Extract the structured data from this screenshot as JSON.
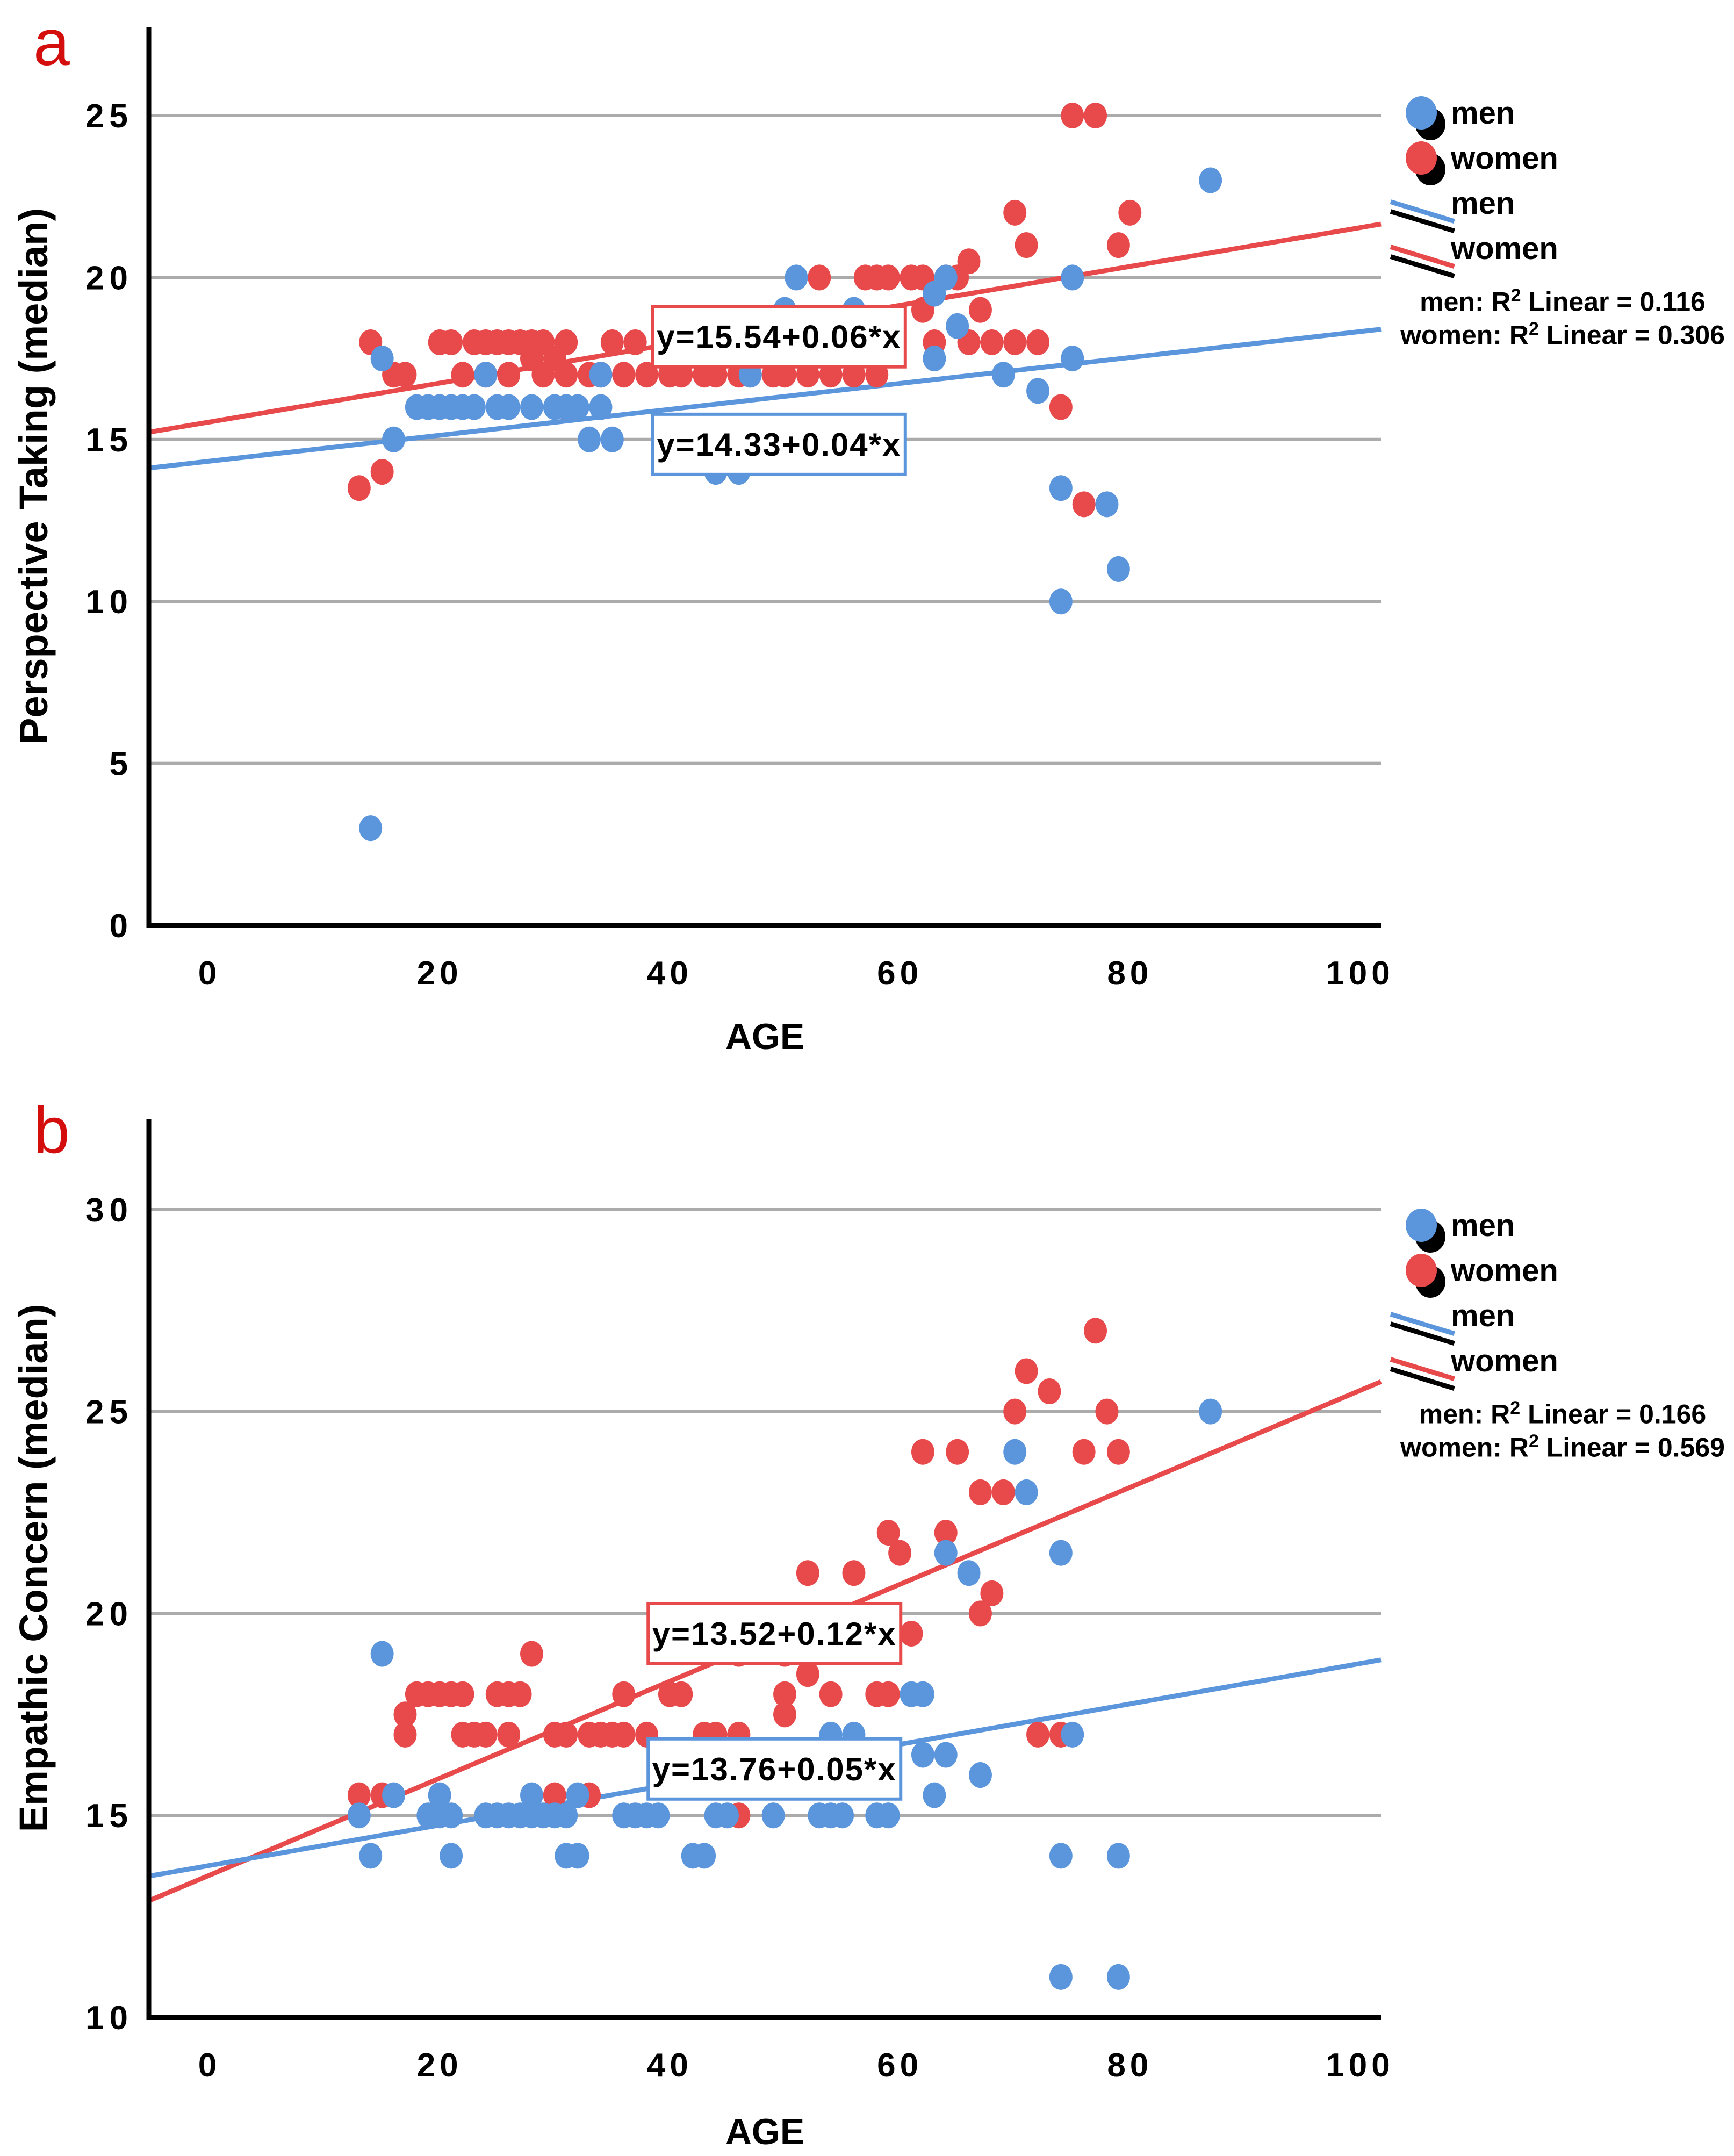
{
  "colors": {
    "men": "#5b96dd",
    "women": "#e8494b",
    "panel_letter": "#d40d0d",
    "grid": "#ababab",
    "axis": "#000000",
    "background": "#ffffff"
  },
  "chart_data": [
    {
      "id": "a",
      "type": "scatter",
      "panel_label": "a",
      "xlabel": "AGE",
      "ylabel": "Perspective Taking (median)",
      "xlim": [
        -5,
        105
      ],
      "ylim": [
        0,
        27.5
      ],
      "xticks": [
        "0",
        "20",
        "40",
        "60",
        "80",
        "100"
      ],
      "xtick_values": [
        0,
        20,
        40,
        60,
        80,
        100
      ],
      "yticks": [
        "0",
        "5",
        "10",
        "15",
        "20",
        "25"
      ],
      "ytick_values": [
        0,
        5,
        10,
        15,
        20,
        25
      ],
      "grid": true,
      "legend_position": "right-top",
      "series": [
        {
          "name": "women",
          "color": "#e8494b",
          "points": [
            [
              13,
              13.5
            ],
            [
              15,
              14
            ],
            [
              14,
              18
            ],
            [
              20,
              18
            ],
            [
              21,
              18
            ],
            [
              23,
              18
            ],
            [
              24,
              18
            ],
            [
              25,
              18
            ],
            [
              26,
              18
            ],
            [
              27,
              18
            ],
            [
              28,
              18
            ],
            [
              29,
              18
            ],
            [
              31,
              18
            ],
            [
              35,
              18
            ],
            [
              37,
              18
            ],
            [
              28,
              17.5
            ],
            [
              30,
              17.5
            ],
            [
              16,
              17
            ],
            [
              17,
              17
            ],
            [
              22,
              17
            ],
            [
              24,
              17
            ],
            [
              26,
              17
            ],
            [
              29,
              17
            ],
            [
              31,
              17
            ],
            [
              33,
              17
            ],
            [
              34,
              17
            ],
            [
              36,
              17
            ],
            [
              38,
              17
            ],
            [
              40,
              17
            ],
            [
              41,
              17
            ],
            [
              43,
              17
            ],
            [
              44,
              17
            ],
            [
              46,
              17
            ],
            [
              47,
              17
            ],
            [
              49,
              17
            ],
            [
              50,
              17
            ],
            [
              52,
              17
            ],
            [
              54,
              17
            ],
            [
              56,
              17
            ],
            [
              58,
              17
            ],
            [
              31,
              16
            ],
            [
              74,
              16
            ],
            [
              62,
              19
            ],
            [
              67,
              19
            ],
            [
              63,
              18
            ],
            [
              66,
              18
            ],
            [
              68,
              18
            ],
            [
              70,
              18
            ],
            [
              72,
              18
            ],
            [
              53,
              20
            ],
            [
              57,
              20
            ],
            [
              58,
              20
            ],
            [
              59,
              20
            ],
            [
              61,
              20
            ],
            [
              62,
              20
            ],
            [
              64,
              20
            ],
            [
              65,
              20
            ],
            [
              66,
              20.5
            ],
            [
              70,
              22
            ],
            [
              80,
              22
            ],
            [
              71,
              21
            ],
            [
              79,
              21
            ],
            [
              75,
              25
            ],
            [
              77,
              25
            ],
            [
              76,
              13
            ]
          ]
        },
        {
          "name": "men",
          "color": "#5b96dd",
          "points": [
            [
              14,
              3
            ],
            [
              15,
              17.5
            ],
            [
              18,
              16
            ],
            [
              19,
              16
            ],
            [
              20,
              16
            ],
            [
              21,
              16
            ],
            [
              22,
              16
            ],
            [
              23,
              16
            ],
            [
              25,
              16
            ],
            [
              26,
              16
            ],
            [
              28,
              16
            ],
            [
              30,
              16
            ],
            [
              31,
              16
            ],
            [
              32,
              16
            ],
            [
              34,
              16
            ],
            [
              16,
              15
            ],
            [
              33,
              15
            ],
            [
              35,
              15
            ],
            [
              43,
              15
            ],
            [
              45,
              15
            ],
            [
              53,
              15
            ],
            [
              44,
              14
            ],
            [
              46,
              14
            ],
            [
              24,
              17
            ],
            [
              34,
              17
            ],
            [
              47,
              17
            ],
            [
              50,
              19
            ],
            [
              56,
              19
            ],
            [
              57,
              18
            ],
            [
              63,
              19.5
            ],
            [
              59,
              18.5
            ],
            [
              65,
              18.5
            ],
            [
              63,
              17.5
            ],
            [
              51,
              20
            ],
            [
              64,
              20
            ],
            [
              75,
              20
            ],
            [
              69,
              17
            ],
            [
              72,
              16.5
            ],
            [
              75,
              17.5
            ],
            [
              87,
              23
            ],
            [
              74,
              13.5
            ],
            [
              78,
              13
            ],
            [
              74,
              10
            ],
            [
              79,
              11
            ]
          ]
        }
      ],
      "trend_lines": [
        {
          "name": "women",
          "color": "#e8494b",
          "equation": "y=15.54+0.06*x",
          "intercept": 15.54,
          "slope": 0.06
        },
        {
          "name": "men",
          "color": "#5b96dd",
          "equation": "y=14.33+0.04*x",
          "intercept": 14.33,
          "slope": 0.04
        }
      ],
      "annotations": [
        {
          "series": "women",
          "text": "y=15.54+0.06*x",
          "x": 49.5,
          "y": 18.17
        },
        {
          "series": "men",
          "text": "y=14.33+0.04*x",
          "x": 49.5,
          "y": 14.85
        }
      ],
      "legend": {
        "dot_men": "men",
        "dot_women": "women",
        "line_men": "men",
        "line_women": "women",
        "r2_men_prefix": "men: R",
        "r2_men_sup": "2",
        "r2_men_suffix": " Linear = 0.116",
        "r2_women_prefix": "women: R",
        "r2_women_sup": "2",
        "r2_women_suffix": " Linear = 0.306"
      }
    },
    {
      "id": "b",
      "type": "scatter",
      "panel_label": "b",
      "xlabel": "AGE",
      "ylabel": "Empathic Concern (median)",
      "xlim": [
        -5,
        105
      ],
      "ylim": [
        10,
        32
      ],
      "xticks": [
        "0",
        "20",
        "40",
        "60",
        "80",
        "100"
      ],
      "xtick_values": [
        0,
        20,
        40,
        60,
        80,
        100
      ],
      "yticks": [
        "10",
        "15",
        "20",
        "25",
        "30"
      ],
      "ytick_values": [
        10,
        15,
        20,
        25,
        30
      ],
      "grid": true,
      "legend_position": "right-top",
      "series": [
        {
          "name": "women",
          "color": "#e8494b",
          "points": [
            [
              13,
              15.5
            ],
            [
              15,
              15.5
            ],
            [
              30,
              15.5
            ],
            [
              33,
              15.5
            ],
            [
              17,
              17.5
            ],
            [
              17,
              17
            ],
            [
              18,
              18
            ],
            [
              19,
              18
            ],
            [
              20,
              18
            ],
            [
              21,
              18
            ],
            [
              22,
              18
            ],
            [
              25,
              18
            ],
            [
              26,
              18
            ],
            [
              27,
              18
            ],
            [
              36,
              18
            ],
            [
              40,
              18
            ],
            [
              41,
              18
            ],
            [
              28,
              19
            ],
            [
              22,
              17
            ],
            [
              23,
              17
            ],
            [
              24,
              17
            ],
            [
              26,
              17
            ],
            [
              30,
              17
            ],
            [
              31,
              17
            ],
            [
              33,
              17
            ],
            [
              34,
              17
            ],
            [
              35,
              17
            ],
            [
              36,
              17
            ],
            [
              38,
              17
            ],
            [
              43,
              17
            ],
            [
              44,
              17
            ],
            [
              46,
              17
            ],
            [
              55,
              16.5
            ],
            [
              46,
              15
            ],
            [
              46,
              19
            ],
            [
              50,
              19
            ],
            [
              52,
              18.5
            ],
            [
              50,
              18
            ],
            [
              54,
              18
            ],
            [
              58,
              18
            ],
            [
              59,
              18
            ],
            [
              50,
              17.5
            ],
            [
              72,
              17
            ],
            [
              74,
              17
            ],
            [
              61,
              19.5
            ],
            [
              67,
              20
            ],
            [
              68,
              20.5
            ],
            [
              52,
              21
            ],
            [
              56,
              21
            ],
            [
              60,
              21.5
            ],
            [
              59,
              22
            ],
            [
              64,
              22
            ],
            [
              67,
              23
            ],
            [
              69,
              23
            ],
            [
              62,
              24
            ],
            [
              65,
              24
            ],
            [
              76,
              24
            ],
            [
              79,
              24
            ],
            [
              70,
              25
            ],
            [
              78,
              25
            ],
            [
              71,
              26
            ],
            [
              73,
              25.5
            ],
            [
              77,
              27
            ]
          ]
        },
        {
          "name": "men",
          "color": "#5b96dd",
          "points": [
            [
              15,
              19
            ],
            [
              16,
              15.5
            ],
            [
              20,
              15.5
            ],
            [
              28,
              15.5
            ],
            [
              32,
              15.5
            ],
            [
              63,
              15.5
            ],
            [
              13,
              15
            ],
            [
              19,
              15
            ],
            [
              20,
              15
            ],
            [
              21,
              15
            ],
            [
              24,
              15
            ],
            [
              25,
              15
            ],
            [
              26,
              15
            ],
            [
              27,
              15
            ],
            [
              28,
              15
            ],
            [
              29,
              15
            ],
            [
              30,
              15
            ],
            [
              31,
              15
            ],
            [
              36,
              15
            ],
            [
              37,
              15
            ],
            [
              38,
              15
            ],
            [
              39,
              15
            ],
            [
              44,
              15
            ],
            [
              45,
              15
            ],
            [
              49,
              15
            ],
            [
              53,
              15
            ],
            [
              54,
              15
            ],
            [
              55,
              15
            ],
            [
              58,
              15
            ],
            [
              59,
              15
            ],
            [
              14,
              14
            ],
            [
              21,
              14
            ],
            [
              31,
              14
            ],
            [
              32,
              14
            ],
            [
              42,
              14
            ],
            [
              43,
              14
            ],
            [
              74,
              14
            ],
            [
              79,
              14
            ],
            [
              48,
              16.5
            ],
            [
              62,
              16.5
            ],
            [
              64,
              16.5
            ],
            [
              67,
              16
            ],
            [
              54,
              17
            ],
            [
              56,
              17
            ],
            [
              75,
              17
            ],
            [
              61,
              18
            ],
            [
              62,
              18
            ],
            [
              70,
              24
            ],
            [
              71,
              23
            ],
            [
              74,
              21.5
            ],
            [
              64,
              21.5
            ],
            [
              66,
              21
            ],
            [
              87,
              25
            ],
            [
              74,
              11
            ],
            [
              79,
              11
            ]
          ]
        }
      ],
      "trend_lines": [
        {
          "name": "women",
          "color": "#e8494b",
          "equation": "y=13.52+0.12*x",
          "intercept": 13.52,
          "slope": 0.12
        },
        {
          "name": "men",
          "color": "#5b96dd",
          "equation": "y=13.76+0.05*x",
          "intercept": 13.76,
          "slope": 0.05
        }
      ],
      "annotations": [
        {
          "series": "women",
          "text": "y=13.52+0.12*x",
          "x": 49.1,
          "y": 19.5
        },
        {
          "series": "men",
          "text": "y=13.76+0.05*x",
          "x": 49.1,
          "y": 16.15
        }
      ],
      "legend": {
        "dot_men": "men",
        "dot_women": "women",
        "line_men": "men",
        "line_women": "women",
        "r2_men_prefix": "men: R",
        "r2_men_sup": "2",
        "r2_men_suffix": " Linear = 0.166",
        "r2_women_prefix": "women: R",
        "r2_women_sup": "2",
        "r2_women_suffix": " Linear = 0.569"
      }
    }
  ]
}
